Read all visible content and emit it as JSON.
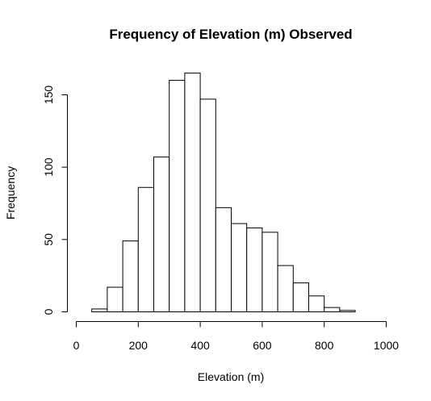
{
  "chart_data": {
    "type": "bar",
    "title": "Frequency of Elevation (m) Observed",
    "xlabel": "Elevation (m)",
    "ylabel": "Frequency",
    "xlim": [
      0,
      1000
    ],
    "ylim": [
      0,
      165
    ],
    "x_ticks": [
      0,
      200,
      400,
      600,
      800,
      1000
    ],
    "y_ticks": [
      0,
      50,
      100,
      150
    ],
    "bins": [
      {
        "from": 50,
        "to": 100,
        "count": 2
      },
      {
        "from": 100,
        "to": 150,
        "count": 17
      },
      {
        "from": 150,
        "to": 200,
        "count": 49
      },
      {
        "from": 200,
        "to": 250,
        "count": 86
      },
      {
        "from": 250,
        "to": 300,
        "count": 107
      },
      {
        "from": 300,
        "to": 350,
        "count": 160
      },
      {
        "from": 350,
        "to": 400,
        "count": 165
      },
      {
        "from": 400,
        "to": 450,
        "count": 147
      },
      {
        "from": 450,
        "to": 500,
        "count": 72
      },
      {
        "from": 500,
        "to": 550,
        "count": 61
      },
      {
        "from": 550,
        "to": 600,
        "count": 58
      },
      {
        "from": 600,
        "to": 650,
        "count": 55
      },
      {
        "from": 650,
        "to": 700,
        "count": 32
      },
      {
        "from": 700,
        "to": 750,
        "count": 20
      },
      {
        "from": 750,
        "to": 800,
        "count": 11
      },
      {
        "from": 800,
        "to": 850,
        "count": 3
      },
      {
        "from": 850,
        "to": 900,
        "count": 1
      }
    ],
    "grid": false,
    "legend": "none"
  }
}
